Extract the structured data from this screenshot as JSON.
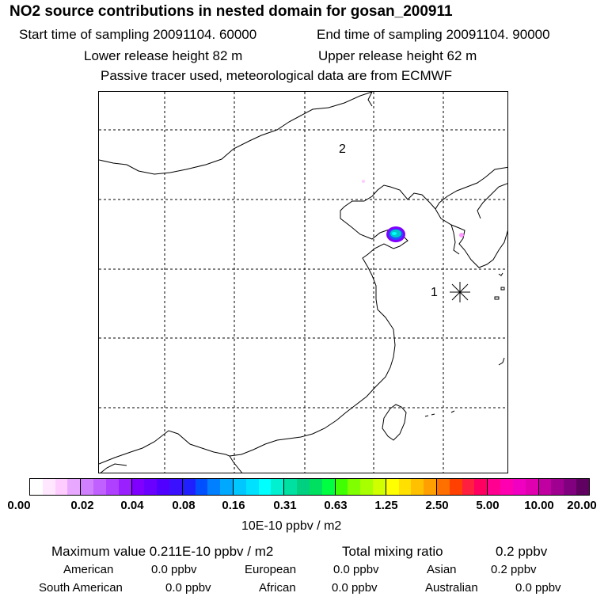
{
  "header": {
    "title": "NO2 source contributions in nested domain for gosan_200911",
    "start_label": "Start time of sampling 20091104. 60000",
    "end_label": "End time of sampling 20091104. 90000",
    "lower_label": "Lower release height   82 m",
    "upper_label": "Upper release height   62 m",
    "note": "Passive tracer used, meteorological data are from ECMWF"
  },
  "map": {
    "markers": {
      "release_1": "1",
      "release_2": "2"
    },
    "station_icon": "asterisk-station-icon",
    "colors": {
      "coast": "#000000",
      "grid": "#000000",
      "plume_core": "#00c8c8",
      "plume_edge": "#8000ff",
      "trace": "#ff99ff"
    }
  },
  "colorbar": {
    "ticks": [
      "0.00",
      "0.02",
      "0.04",
      "0.08",
      "0.16",
      "0.31",
      "0.63",
      "1.25",
      "2.50",
      "5.00",
      "10.00",
      "20.00"
    ],
    "segment_colors": [
      "#ffffff",
      "#ffe8ff",
      "#ffccff",
      "#e8a8ff",
      "#d080ff",
      "#c060ff",
      "#b040ff",
      "#9a20ff",
      "#8000ff",
      "#6a00ff",
      "#5000ff",
      "#3a10ff",
      "#2020ff",
      "#0050ff",
      "#0080ff",
      "#00a8ff",
      "#00c8ff",
      "#00e0ff",
      "#00ffff",
      "#00f0d0",
      "#00e0a0",
      "#00d080",
      "#00e060",
      "#00ff40",
      "#40ff00",
      "#80ff00",
      "#a8ff00",
      "#d0ff00",
      "#ffff00",
      "#ffe000",
      "#ffc000",
      "#ffa000",
      "#ff7000",
      "#ff4000",
      "#ff2040",
      "#ff0060",
      "#ff0090",
      "#ff00b0",
      "#f000c0",
      "#e000b0",
      "#c000a0",
      "#a00090",
      "#800080",
      "#600060"
    ],
    "unit": "10E-10 ppbv / m2"
  },
  "stats": {
    "max_label": "Maximum value  0.211E-10 ppbv / m2",
    "total_label": "Total mixing ratio",
    "total_value": "0.2 ppbv",
    "american_label": "American",
    "american_value": "0.0 ppbv",
    "european_label": "European",
    "european_value": "0.0 ppbv",
    "asian_label": "Asian",
    "asian_value": "0.2 ppbv",
    "south_american_label": "South American",
    "south_american_value": "0.0 ppbv",
    "african_label": "African",
    "african_value": "0.0 ppbv",
    "australian_label": "Australian",
    "australian_value": "0.0 ppbv"
  }
}
